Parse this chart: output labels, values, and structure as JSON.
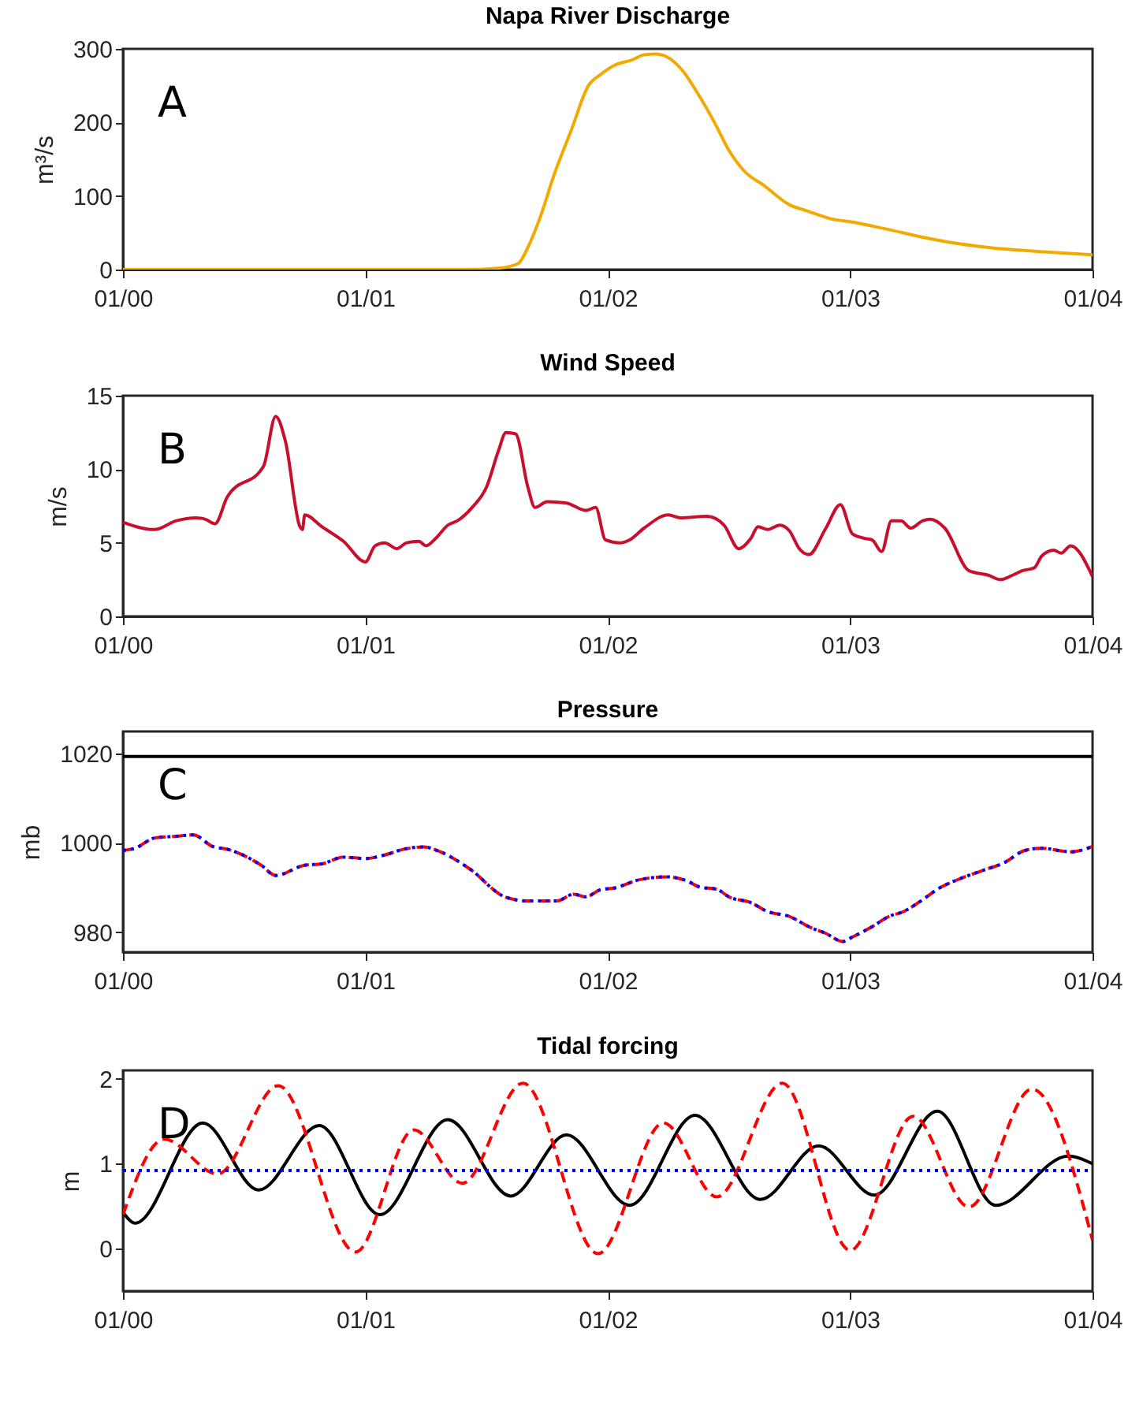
{
  "chart_data": [
    {
      "type": "line",
      "title": "Napa River Discharge",
      "ylabel": "m³/s",
      "annotations": [
        "A"
      ],
      "xlim": [
        "2000-12-31",
        "2001-01-04"
      ],
      "xticks": [
        {
          "value": "2000-12-31",
          "label": "01/00"
        },
        {
          "value": "2001-01-01",
          "label": "01/01"
        },
        {
          "value": "2001-01-02",
          "label": "01/02"
        },
        {
          "value": "2001-01-03",
          "label": "01/03"
        },
        {
          "value": "2001-01-04",
          "label": "01/04"
        }
      ],
      "ylim": [
        0,
        300
      ],
      "yticks": [
        0,
        100,
        200,
        300
      ],
      "line_style": "solid",
      "marker": "none",
      "x": [
        "2000-12-31T00:00",
        "2000-12-31T12:00",
        "2001-01-01T00:00",
        "2001-01-01T09:36",
        "2001-01-01T13:12",
        "2001-01-01T15:07",
        "2001-01-01T16:05",
        "2001-01-01T17:17",
        "2001-01-01T18:43",
        "2001-01-01T20:24",
        "2001-01-01T22:05",
        "2001-01-01T23:17",
        "2001-01-02T00:43",
        "2001-01-02T02:24",
        "2001-01-02T03:36",
        "2001-01-02T04:48",
        "2001-01-02T06:14",
        "2001-01-02T07:26",
        "2001-01-02T08:53",
        "2001-01-02T10:34",
        "2001-01-02T12:00",
        "2001-01-02T13:26",
        "2001-01-02T15:36",
        "2001-01-02T18:00",
        "2001-01-02T19:41",
        "2001-01-02T22:05",
        "2001-01-03T00:00",
        "2001-01-03T03:36",
        "2001-01-03T07:12",
        "2001-01-03T10:48",
        "2001-01-03T14:24",
        "2001-01-03T19:12",
        "2001-01-04T00:00"
      ],
      "series": [
        {
          "color": "#f2a900",
          "values": [
            0,
            0,
            0,
            0,
            2,
            8,
            30,
            70,
            130,
            190,
            250,
            265,
            278,
            285,
            292,
            293,
            286,
            270,
            240,
            200,
            162,
            135,
            113,
            88,
            80,
            69,
            65,
            55,
            44,
            35,
            29,
            24,
            20
          ]
        }
      ]
    },
    {
      "type": "line",
      "title": "Wind Speed",
      "ylabel": "m/s",
      "annotations": [
        "B"
      ],
      "xlim": [
        "2000-12-31",
        "2001-01-04"
      ],
      "xticks": [
        {
          "value": "2000-12-31",
          "label": "01/00"
        },
        {
          "value": "2001-01-01",
          "label": "01/01"
        },
        {
          "value": "2001-01-02",
          "label": "01/02"
        },
        {
          "value": "2001-01-03",
          "label": "01/03"
        },
        {
          "value": "2001-01-04",
          "label": "01/04"
        }
      ],
      "ylim": [
        0,
        15
      ],
      "yticks": [
        0,
        5,
        10,
        15
      ],
      "line_style": "solid",
      "marker": "none",
      "x": [
        "2000-12-31T00:00",
        "2000-12-31T03:07",
        "2000-12-31T05:17",
        "2000-12-31T07:12",
        "2000-12-31T08:10",
        "2000-12-31T09:07",
        "2000-12-31T10:19",
        "2000-12-31T13:55",
        "2000-12-31T15:07",
        "2000-12-31T16:05",
        "2000-12-31T17:31",
        "2000-12-31T17:46",
        "2000-12-31T18:00",
        "2000-12-31T19:41",
        "2000-12-31T21:50",
        "2001-01-01T00:00",
        "2001-01-01T00:58",
        "2001-01-01T01:55",
        "2001-01-01T03:07",
        "2001-01-01T04:05",
        "2001-01-01T05:17",
        "2001-01-01T06:00",
        "2001-01-01T06:58",
        "2001-01-01T08:10",
        "2001-01-01T09:07",
        "2001-01-01T10:34",
        "2001-01-01T12:00",
        "2001-01-01T13:12",
        "2001-01-01T13:55",
        "2001-01-01T14:53",
        "2001-01-01T16:05",
        "2001-01-01T16:48",
        "2001-01-01T18:00",
        "2001-01-01T19:55",
        "2001-01-01T21:50",
        "2001-01-01T22:48",
        "2001-01-01T23:46",
        "2001-01-02T01:12",
        "2001-01-02T02:10",
        "2001-01-02T03:36",
        "2001-01-02T06:00",
        "2001-01-02T07:12",
        "2001-01-02T09:50",
        "2001-01-02T11:31",
        "2001-01-02T12:58",
        "2001-01-02T14:10",
        "2001-01-02T14:53",
        "2001-01-02T15:50",
        "2001-01-02T17:02",
        "2001-01-02T18:00",
        "2001-01-02T18:58",
        "2001-01-02T19:55",
        "2001-01-02T21:36",
        "2001-01-02T23:02",
        "2001-01-03T00:14",
        "2001-01-03T01:26",
        "2001-01-03T02:10",
        "2001-01-03T03:07",
        "2001-01-03T04:05",
        "2001-01-03T05:02",
        "2001-01-03T06:00",
        "2001-01-03T07:12",
        "2001-01-03T07:55",
        "2001-01-03T09:22",
        "2001-01-03T11:46",
        "2001-01-03T13:41",
        "2001-01-03T14:53",
        "2001-01-03T16:05",
        "2001-01-03T17:02",
        "2001-01-03T18:14",
        "2001-01-03T18:58",
        "2001-01-03T20:10",
        "2001-01-03T20:53",
        "2001-01-03T21:50",
        "2001-01-04T00:00"
      ],
      "series": [
        {
          "color": "#c8102e",
          "values": [
            6.4,
            5.9,
            6.5,
            6.7,
            6.6,
            6.3,
            8.1,
            10.2,
            13.6,
            11.9,
            6.1,
            5.9,
            6.9,
            6.1,
            5.1,
            3.7,
            4.8,
            5.0,
            4.6,
            5.0,
            5.1,
            4.8,
            5.3,
            6.2,
            6.5,
            7.4,
            8.8,
            11.3,
            12.5,
            12.4,
            8.8,
            7.4,
            7.8,
            7.7,
            7.2,
            7.4,
            5.2,
            5.0,
            5.2,
            6.0,
            6.9,
            6.7,
            6.8,
            6.2,
            4.6,
            5.3,
            6.1,
            5.9,
            6.2,
            5.8,
            4.6,
            4.2,
            6.0,
            7.6,
            5.6,
            5.3,
            5.2,
            4.4,
            6.5,
            6.5,
            6.0,
            6.5,
            6.6,
            6.0,
            3.1,
            2.8,
            2.5,
            2.8,
            3.1,
            3.3,
            4.1,
            4.5,
            4.3,
            4.8,
            2.7
          ]
        }
      ]
    },
    {
      "type": "line",
      "title": "Pressure",
      "ylabel": "mb",
      "annotations": [
        "C"
      ],
      "xlim": [
        "2000-12-31",
        "2001-01-04"
      ],
      "xticks": [
        {
          "value": "2000-12-31",
          "label": "01/00"
        },
        {
          "value": "2001-01-01",
          "label": "01/01"
        },
        {
          "value": "2001-01-02",
          "label": "01/02"
        },
        {
          "value": "2001-01-03",
          "label": "01/03"
        },
        {
          "value": "2001-01-04",
          "label": "01/04"
        }
      ],
      "ylim": [
        975.5,
        1025
      ],
      "yticks": [
        980,
        1000,
        1020
      ],
      "marker": "none",
      "x": [
        "2000-12-31T00:00",
        "2000-12-31T01:12",
        "2000-12-31T03:07",
        "2000-12-31T05:17",
        "2000-12-31T06:58",
        "2000-12-31T08:53",
        "2000-12-31T10:19",
        "2000-12-31T13:41",
        "2000-12-31T15:07",
        "2000-12-31T18:00",
        "2000-12-31T19:41",
        "2000-12-31T21:50",
        "2001-01-01T00:00",
        "2001-01-01T01:55",
        "2001-01-01T03:50",
        "2001-01-01T05:46",
        "2001-01-01T07:26",
        "2001-01-01T10:19",
        "2001-01-01T13:55",
        "2001-01-01T16:05",
        "2001-01-01T18:58",
        "2001-01-01T20:38",
        "2001-01-01T21:50",
        "2001-01-01T23:17",
        "2001-01-02T00:43",
        "2001-01-02T02:53",
        "2001-01-02T05:46",
        "2001-01-02T07:55",
        "2001-01-02T09:07",
        "2001-01-02T10:48",
        "2001-01-02T12:00",
        "2001-01-02T14:10",
        "2001-01-02T15:50",
        "2001-01-02T18:00",
        "2001-01-02T19:55",
        "2001-01-02T21:36",
        "2001-01-02T23:17",
        "2001-01-03T00:14",
        "2001-01-03T02:10",
        "2001-01-03T03:50",
        "2001-01-03T05:17",
        "2001-01-03T07:12",
        "2001-01-03T08:38",
        "2001-01-03T10:48",
        "2001-01-03T12:58",
        "2001-01-03T15:22",
        "2001-01-03T17:17",
        "2001-01-03T18:58",
        "2001-01-03T21:50",
        "2001-01-04T00:00"
      ],
      "series": [
        {
          "color": "#000000",
          "line_style": "solid",
          "x": [
            "2000-12-31T00:00",
            "2001-01-04T00:00"
          ],
          "values": [
            1019.4,
            1019.4
          ]
        },
        {
          "color": "#ff0000",
          "line_style": "dashed",
          "values": [
            998.3,
            998.8,
            1001.1,
            1001.5,
            1001.8,
            999.2,
            998.6,
            995,
            992.7,
            995,
            995.3,
            996.8,
            996.5,
            997.3,
            998.6,
            999.1,
            998,
            994.2,
            987.8,
            987,
            987,
            988.5,
            987.9,
            989.5,
            989.9,
            991.6,
            992.4,
            991.4,
            990.1,
            989.6,
            987.9,
            986.6,
            984.6,
            983.5,
            981.2,
            979.7,
            977.9,
            978.9,
            981.2,
            983.5,
            984.6,
            987.3,
            989.6,
            991.9,
            993.7,
            995.7,
            998.3,
            998.8,
            998,
            999.2
          ]
        },
        {
          "color": "#0000ff",
          "line_style": "dotted",
          "values": [
            998.3,
            998.8,
            1001.1,
            1001.5,
            1001.8,
            999.2,
            998.6,
            995,
            992.7,
            995,
            995.3,
            996.8,
            996.5,
            997.3,
            998.6,
            999.1,
            998,
            994.2,
            987.8,
            987,
            987,
            988.5,
            987.9,
            989.5,
            989.9,
            991.6,
            992.4,
            991.4,
            990.1,
            989.6,
            987.9,
            986.6,
            984.6,
            983.5,
            981.2,
            979.7,
            977.9,
            978.9,
            981.2,
            983.5,
            984.6,
            987.3,
            989.6,
            991.9,
            993.7,
            995.7,
            998.3,
            998.8,
            998,
            999.2
          ]
        }
      ]
    },
    {
      "type": "line",
      "title": "Tidal forcing",
      "ylabel": "m",
      "annotations": [
        "D"
      ],
      "xlim": [
        "2000-12-31",
        "2001-01-04"
      ],
      "xticks": [
        {
          "value": "2000-12-31",
          "label": "01/00"
        },
        {
          "value": "2001-01-01",
          "label": "01/01"
        },
        {
          "value": "2001-01-02",
          "label": "01/02"
        },
        {
          "value": "2001-01-03",
          "label": "01/03"
        },
        {
          "value": "2001-01-04",
          "label": "01/04"
        }
      ],
      "ylim": [
        -0.5,
        2.1
      ],
      "yticks": [
        0,
        1,
        2
      ],
      "marker": "none",
      "series": [
        {
          "color": "#000000",
          "line_style": "solid",
          "x": [
            "2000-12-31T00:00",
            "2000-12-31T01:12",
            "2000-12-31T07:55",
            "2000-12-31T13:26",
            "2000-12-31T19:26",
            "2001-01-01T01:26",
            "2001-01-01T08:10",
            "2001-01-01T14:24",
            "2001-01-01T19:55",
            "2001-01-02T02:10",
            "2001-01-02T08:38",
            "2001-01-02T15:07",
            "2001-01-02T20:53",
            "2001-01-03T02:24",
            "2001-01-03T08:38",
            "2001-01-03T14:24",
            "2001-01-03T21:36",
            "2001-01-04T00:00"
          ],
          "values": [
            0.43,
            0.3,
            1.48,
            0.69,
            1.45,
            0.4,
            1.52,
            0.62,
            1.34,
            0.51,
            1.57,
            0.58,
            1.21,
            0.63,
            1.62,
            0.51,
            1.09,
            1.0
          ]
        },
        {
          "color": "#ff0000",
          "line_style": "dashed",
          "x": [
            "2000-12-31T00:00",
            "2000-12-31T04:05",
            "2000-12-31T09:22",
            "2000-12-31T15:22",
            "2000-12-31T23:02",
            "2001-01-01T04:48",
            "2001-01-01T09:36",
            "2001-01-01T15:36",
            "2001-01-01T23:02",
            "2001-01-02T05:31",
            "2001-01-02T10:48",
            "2001-01-02T17:17",
            "2001-01-03T00:00",
            "2001-01-03T06:14",
            "2001-01-03T11:46",
            "2001-01-03T18:00",
            "2001-01-04T00:00"
          ],
          "values": [
            0.4,
            1.29,
            0.88,
            1.92,
            -0.04,
            1.4,
            0.77,
            1.95,
            -0.06,
            1.48,
            0.61,
            1.95,
            -0.02,
            1.56,
            0.49,
            1.88,
            0.1
          ]
        },
        {
          "color": "#0000ff",
          "line_style": "dotted",
          "x": [
            "2000-12-31T00:00",
            "2001-01-04T00:00"
          ],
          "values": [
            0.92,
            0.92
          ]
        }
      ]
    }
  ]
}
